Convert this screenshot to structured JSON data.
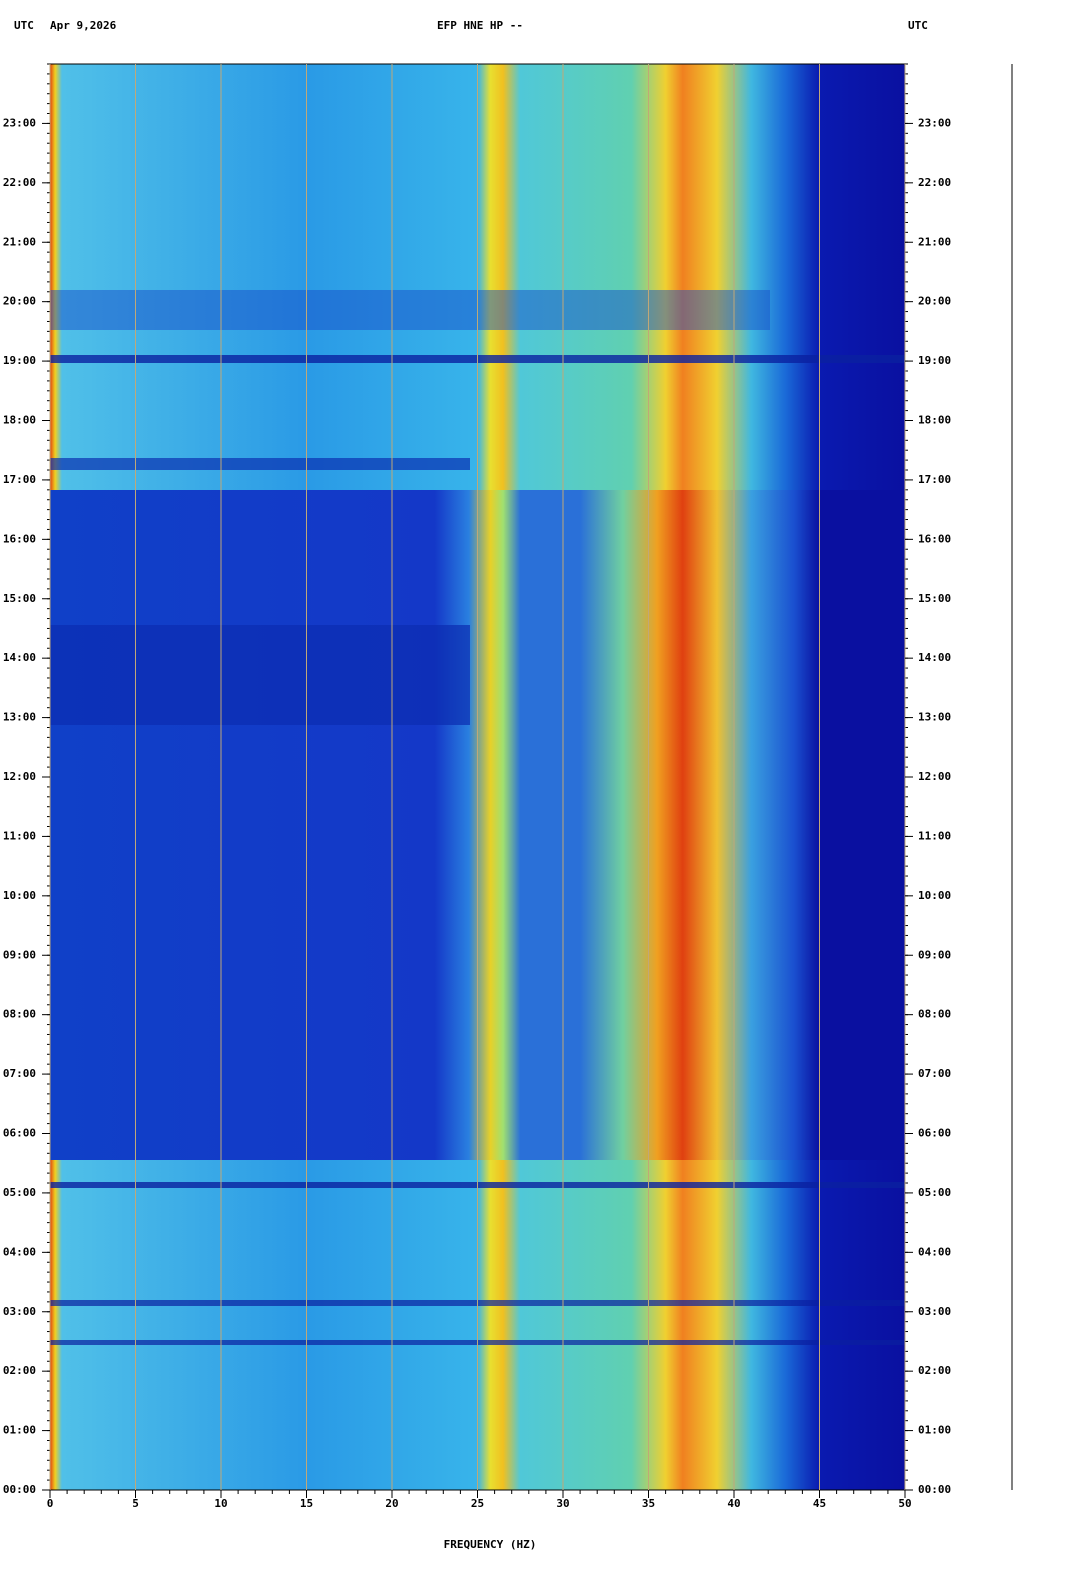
{
  "chart_data": {
    "type": "spectrogram",
    "title": "EFP HNE HP --",
    "time_zone": "UTC",
    "date": "Apr 9,2026",
    "xlabel": "FREQUENCY (HZ)",
    "xlim": [
      0,
      50
    ],
    "xticks": [
      0,
      5,
      10,
      15,
      20,
      25,
      30,
      35,
      40,
      45,
      50
    ],
    "ylim": [
      0,
      24
    ],
    "yticks": [
      {
        "value": 0,
        "label": "00:00"
      },
      {
        "value": 1,
        "label": "01:00"
      },
      {
        "value": 2,
        "label": "02:00"
      },
      {
        "value": 3,
        "label": "03:00"
      },
      {
        "value": 4,
        "label": "04:00"
      },
      {
        "value": 5,
        "label": "05:00"
      },
      {
        "value": 6,
        "label": "06:00"
      },
      {
        "value": 7,
        "label": "07:00"
      },
      {
        "value": 8,
        "label": "08:00"
      },
      {
        "value": 9,
        "label": "09:00"
      },
      {
        "value": 10,
        "label": "10:00"
      },
      {
        "value": 11,
        "label": "11:00"
      },
      {
        "value": 12,
        "label": "12:00"
      },
      {
        "value": 13,
        "label": "13:00"
      },
      {
        "value": 14,
        "label": "14:00"
      },
      {
        "value": 15,
        "label": "15:00"
      },
      {
        "value": 16,
        "label": "16:00"
      },
      {
        "value": 17,
        "label": "17:00"
      },
      {
        "value": 18,
        "label": "18:00"
      },
      {
        "value": 19,
        "label": "19:00"
      },
      {
        "value": 20,
        "label": "20:00"
      },
      {
        "value": 21,
        "label": "21:00"
      },
      {
        "value": 22,
        "label": "22:00"
      },
      {
        "value": 23,
        "label": "23:00"
      }
    ],
    "grid": true
  }
}
